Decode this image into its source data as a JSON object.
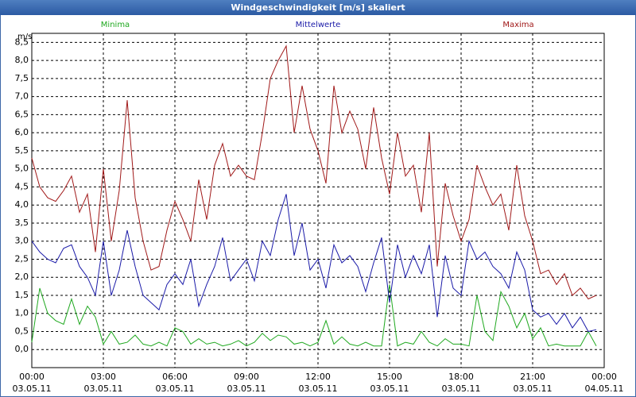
{
  "chart_data": {
    "type": "line",
    "title": "Windgeschwindigkeit [m/s] skaliert",
    "y_label": "m/s",
    "x": [
      0,
      20,
      40,
      60,
      80,
      100,
      120,
      140,
      160,
      180,
      200,
      220,
      240,
      260,
      280,
      300,
      320,
      340,
      360,
      380,
      400,
      420,
      440,
      460,
      480,
      500,
      520,
      540,
      560,
      580,
      600,
      620,
      640,
      660,
      680,
      700,
      720,
      740,
      760,
      780,
      800,
      820,
      840,
      860,
      880,
      900,
      920,
      940,
      960,
      980,
      1000,
      1020,
      1040,
      1060,
      1080,
      1100,
      1120,
      1140,
      1160,
      1180,
      1200,
      1220,
      1240,
      1260,
      1280,
      1300,
      1320,
      1340,
      1360,
      1380,
      1400,
      1420
    ],
    "series": [
      {
        "name": "Minima",
        "color": "#1fa81f",
        "values": [
          0.2,
          1.7,
          1.0,
          0.8,
          0.7,
          1.4,
          0.7,
          1.2,
          0.9,
          0.15,
          0.5,
          0.15,
          0.2,
          0.4,
          0.15,
          0.1,
          0.2,
          0.1,
          0.6,
          0.5,
          0.15,
          0.3,
          0.15,
          0.2,
          0.1,
          0.15,
          0.25,
          0.1,
          0.2,
          0.45,
          0.25,
          0.4,
          0.35,
          0.15,
          0.2,
          0.1,
          0.2,
          0.8,
          0.15,
          0.35,
          0.15,
          0.1,
          0.2,
          0.1,
          0.1,
          1.8,
          0.1,
          0.2,
          0.15,
          0.5,
          0.2,
          0.1,
          0.3,
          0.15,
          0.15,
          0.1,
          1.5,
          0.5,
          0.25,
          1.6,
          1.2,
          0.6,
          1.0,
          0.3,
          0.6,
          0.1,
          0.15,
          0.1,
          0.1,
          0.1,
          0.5,
          0.1
        ]
      },
      {
        "name": "Mittelwerte",
        "color": "#1a1aa8",
        "values": [
          3.0,
          2.7,
          2.5,
          2.4,
          2.8,
          2.9,
          2.3,
          2.0,
          1.5,
          3.0,
          1.5,
          2.2,
          3.3,
          2.3,
          1.5,
          1.3,
          1.1,
          1.8,
          2.1,
          1.8,
          2.5,
          1.2,
          1.8,
          2.3,
          3.1,
          1.9,
          2.2,
          2.5,
          1.9,
          3.0,
          2.6,
          3.6,
          4.3,
          2.6,
          3.5,
          2.2,
          2.5,
          1.7,
          2.9,
          2.4,
          2.6,
          2.3,
          1.6,
          2.4,
          3.1,
          1.3,
          2.9,
          2.0,
          2.6,
          2.1,
          2.9,
          0.9,
          2.6,
          1.7,
          1.5,
          3.0,
          2.5,
          2.7,
          2.3,
          2.1,
          1.7,
          2.7,
          2.2,
          1.1,
          0.9,
          1.0,
          0.7,
          1.0,
          0.6,
          0.9,
          0.5,
          0.55
        ]
      },
      {
        "name": "Maxima",
        "color": "#a01818",
        "values": [
          5.3,
          4.5,
          4.2,
          4.1,
          4.4,
          4.8,
          3.8,
          4.3,
          2.7,
          5.0,
          3.0,
          4.4,
          6.9,
          4.2,
          3.0,
          2.2,
          2.3,
          3.3,
          4.1,
          3.6,
          3.0,
          4.7,
          3.6,
          5.1,
          5.7,
          4.8,
          5.1,
          4.8,
          4.7,
          6.0,
          7.5,
          8.0,
          8.4,
          6.0,
          7.3,
          6.1,
          5.5,
          4.6,
          7.3,
          6.0,
          6.6,
          6.1,
          5.0,
          6.7,
          5.3,
          4.3,
          6.0,
          4.8,
          5.1,
          3.8,
          6.0,
          2.3,
          4.6,
          3.7,
          3.0,
          3.6,
          5.1,
          4.5,
          4.0,
          4.3,
          3.3,
          5.1,
          3.7,
          3.0,
          2.1,
          2.2,
          1.8,
          2.1,
          1.5,
          1.7,
          1.4,
          1.5
        ]
      }
    ],
    "xlim": [
      0,
      1440
    ],
    "xticks": [
      {
        "value": 0,
        "label": "00:00",
        "sublabel": "03.05.11"
      },
      {
        "value": 180,
        "label": "03:00",
        "sublabel": "03.05.11"
      },
      {
        "value": 360,
        "label": "06:00",
        "sublabel": "03.05.11"
      },
      {
        "value": 540,
        "label": "09:00",
        "sublabel": "03.05.11"
      },
      {
        "value": 720,
        "label": "12:00",
        "sublabel": "03.05.11"
      },
      {
        "value": 900,
        "label": "15:00",
        "sublabel": "03.05.11"
      },
      {
        "value": 1080,
        "label": "18:00",
        "sublabel": "03.05.11"
      },
      {
        "value": 1260,
        "label": "21:00",
        "sublabel": "03.05.11"
      },
      {
        "value": 1440,
        "label": "00:00",
        "sublabel": "04.05.11"
      }
    ],
    "ylim": [
      -0.5,
      8.75
    ],
    "yticks": [
      {
        "value": 0,
        "label": "0,0"
      },
      {
        "value": 0.5,
        "label": "0,5"
      },
      {
        "value": 1,
        "label": "1,0"
      },
      {
        "value": 1.5,
        "label": "1,5"
      },
      {
        "value": 2,
        "label": "2,0"
      },
      {
        "value": 2.5,
        "label": "2,5"
      },
      {
        "value": 3,
        "label": "3,0"
      },
      {
        "value": 3.5,
        "label": "3,5"
      },
      {
        "value": 4,
        "label": "4,0"
      },
      {
        "value": 4.5,
        "label": "4,5"
      },
      {
        "value": 5,
        "label": "5,0"
      },
      {
        "value": 5.5,
        "label": "5,5"
      },
      {
        "value": 6,
        "label": "6,0"
      },
      {
        "value": 6.5,
        "label": "6,5"
      },
      {
        "value": 7,
        "label": "7,0"
      },
      {
        "value": 7.5,
        "label": "7,5"
      },
      {
        "value": 8,
        "label": "8,0"
      },
      {
        "value": 8.5,
        "label": "8,5"
      }
    ],
    "grid": true
  }
}
